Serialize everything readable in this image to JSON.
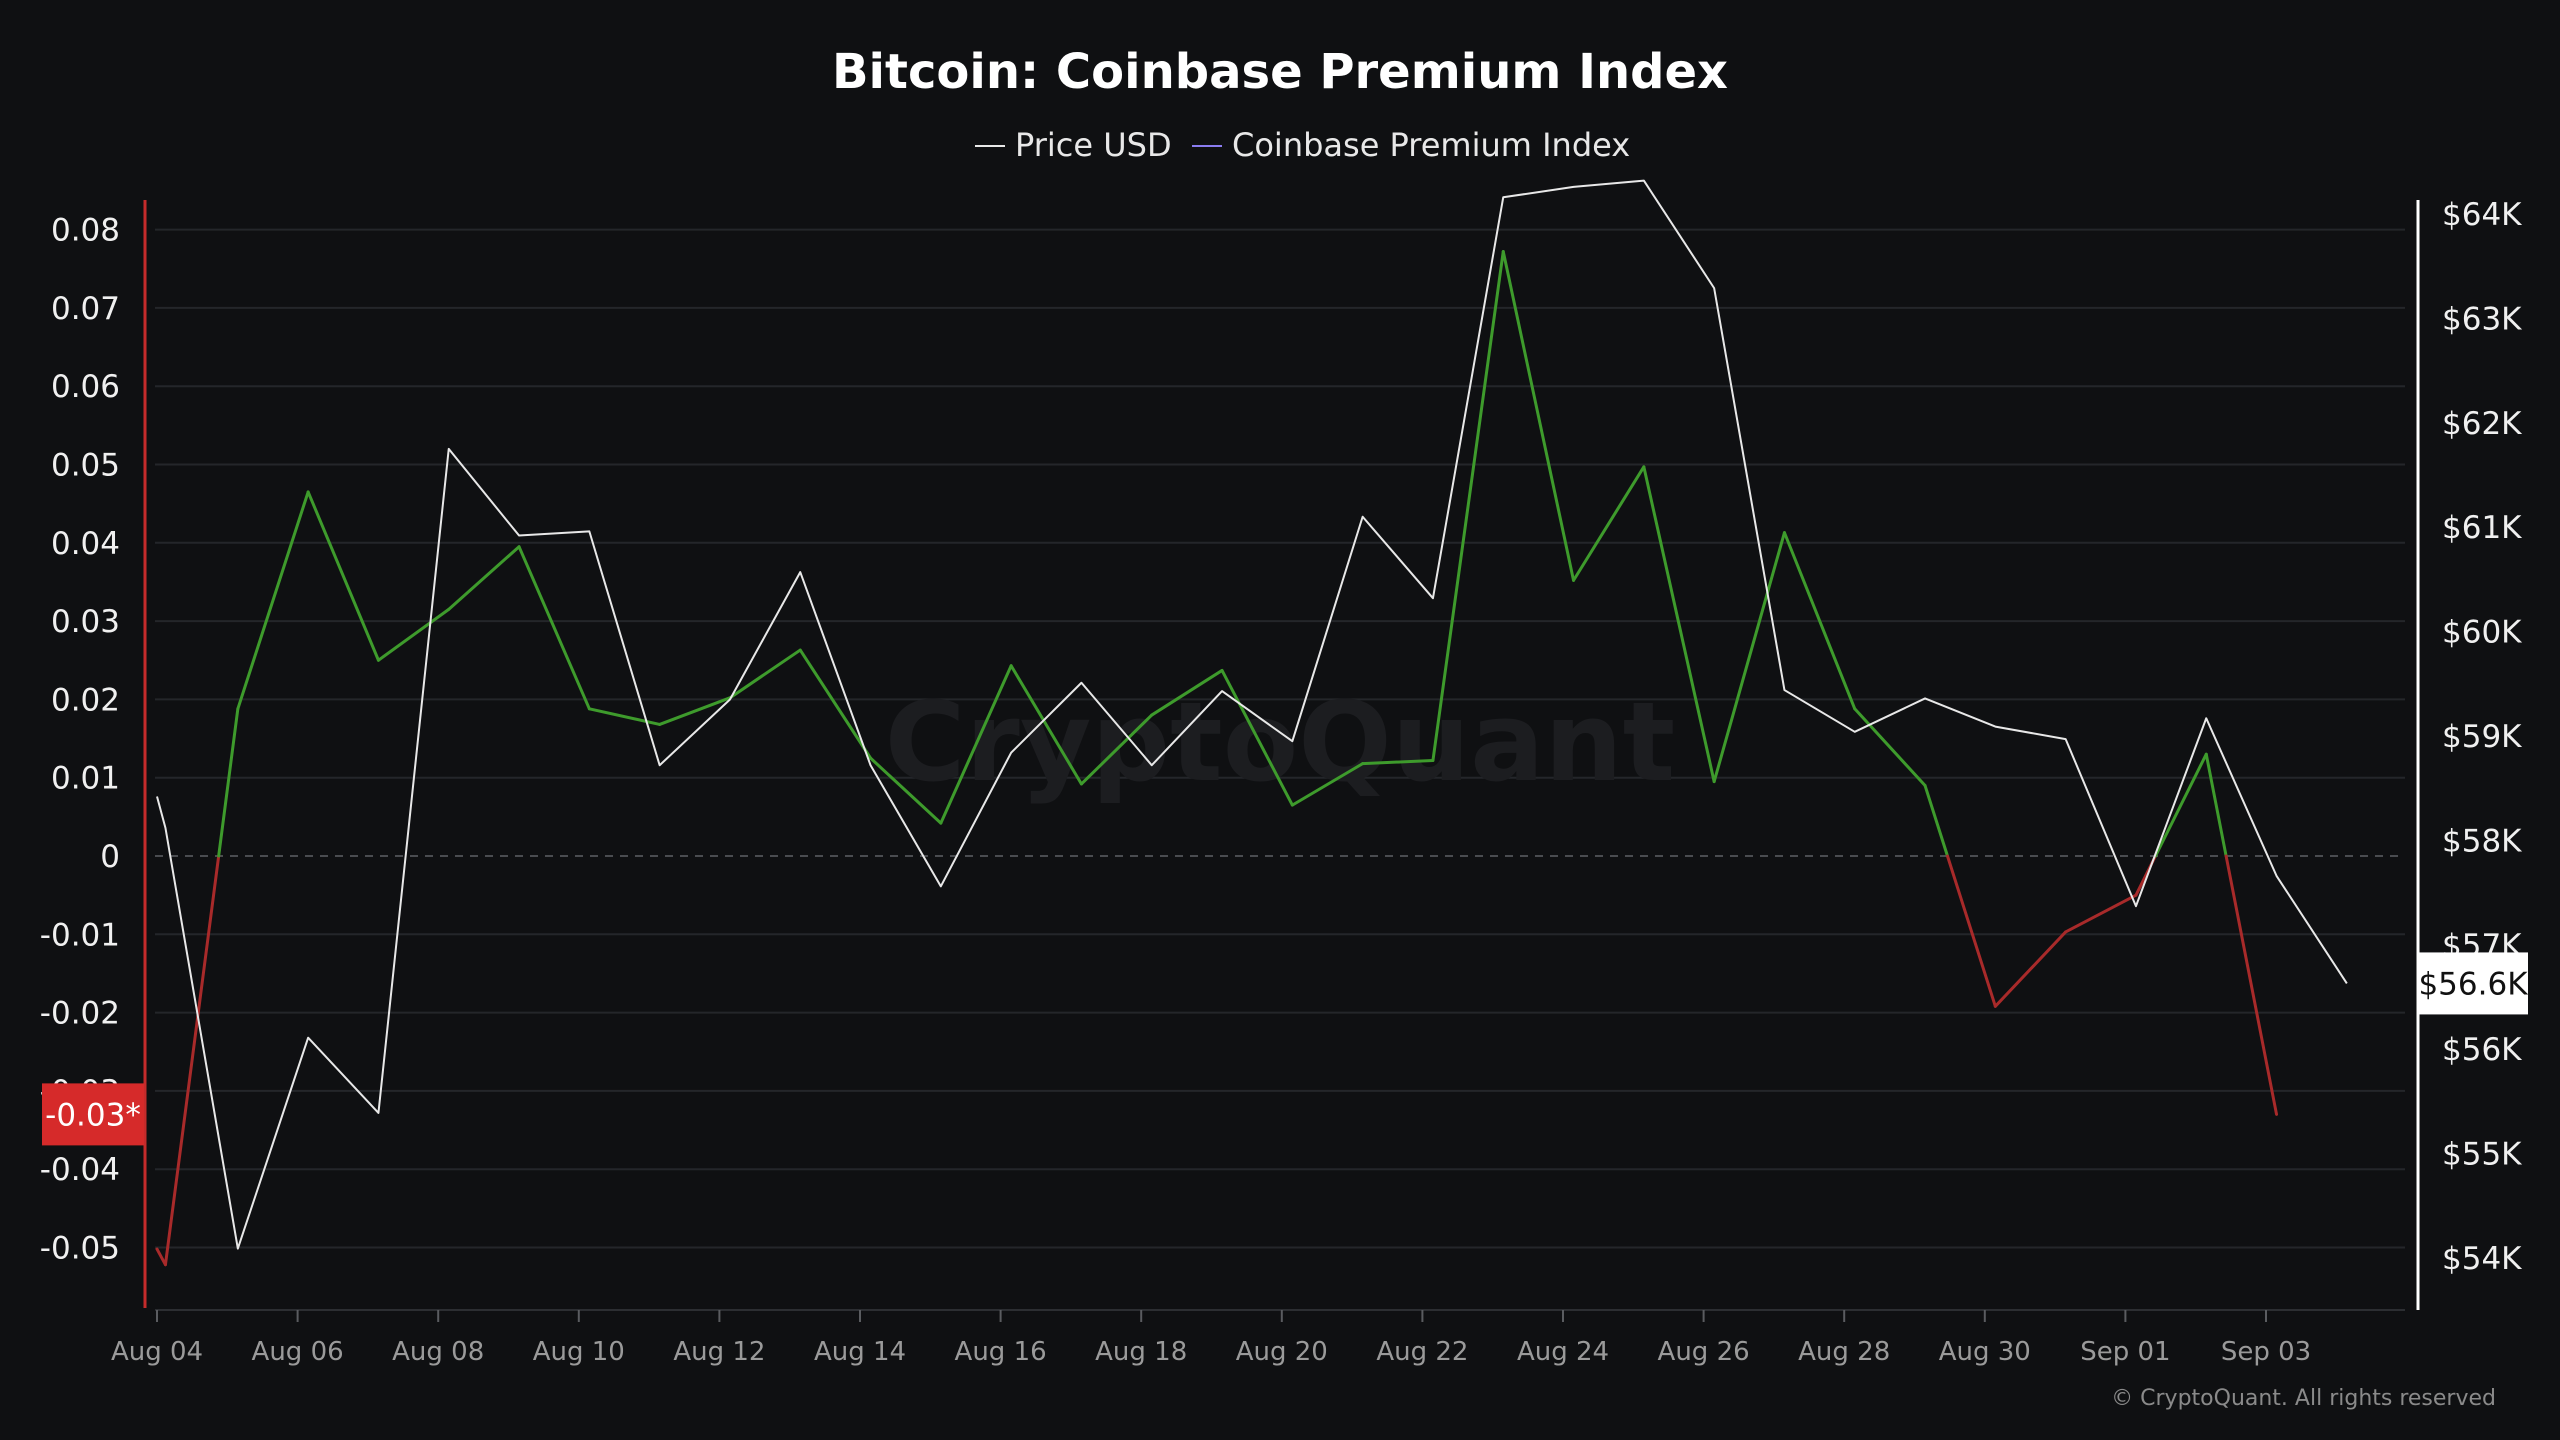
{
  "chart_data": {
    "type": "line",
    "title": "Bitcoin: Coinbase Premium Index",
    "legend": [
      {
        "name": "Price USD",
        "color": "#e8e8e8"
      },
      {
        "name": "Coinbase Premium Index",
        "color": "#8a7cf0"
      }
    ],
    "legend_placement": "top-center",
    "grid": true,
    "x_start_date": "2024-08-04",
    "x_ticks": [
      "Aug 04",
      "Aug 06",
      "Aug 08",
      "Aug 10",
      "Aug 12",
      "Aug 14",
      "Aug 16",
      "Aug 18",
      "Aug 20",
      "Aug 22",
      "Aug 24",
      "Aug 26",
      "Aug 28",
      "Aug 30",
      "Sep 01",
      "Sep 03"
    ],
    "x_tick_days": [
      0,
      2,
      4,
      6,
      8,
      10,
      12,
      14,
      16,
      18,
      20,
      22,
      24,
      26,
      28,
      30
    ],
    "x_range_days": [
      0,
      32.5
    ],
    "left_axis": {
      "ylim": [
        -0.058,
        0.085
      ],
      "ticks": [
        "0.08",
        "0.07",
        "0.06",
        "0.05",
        "0.04",
        "0.03",
        "0.02",
        "0.01",
        "0",
        "-0.01",
        "-0.02",
        "-0.03",
        "-0.04",
        "-0.05"
      ],
      "tick_values": [
        0.08,
        0.07,
        0.06,
        0.05,
        0.04,
        0.03,
        0.02,
        0.01,
        0,
        -0.01,
        -0.02,
        -0.03,
        -0.04,
        -0.05
      ]
    },
    "right_axis": {
      "ylim": [
        53380,
        64990
      ],
      "ticks": [
        "$64K",
        "$63K",
        "$62K",
        "$61K",
        "$60K",
        "$59K",
        "$58K",
        "$57K",
        "$56K",
        "$55K",
        "$54K"
      ],
      "tick_values": [
        64000,
        63000,
        62000,
        61000,
        60000,
        59000,
        58000,
        57000,
        56000,
        55000,
        54000
      ]
    },
    "series": [
      {
        "name": "Price USD",
        "axis": "right",
        "color": "#e8e8e8",
        "x": [
          0,
          0.12,
          1.15,
          2.15,
          3.15,
          4.15,
          5.15,
          6.15,
          7.15,
          8.15,
          9.15,
          10.15,
          11.15,
          12.15,
          13.15,
          14.15,
          15.15,
          16.15,
          17.15,
          18.15,
          19.15,
          20.15,
          21.15,
          22.15,
          23.15,
          24.15,
          25.15,
          26.15,
          27.15,
          28.15,
          29.15,
          30.15,
          31.15
        ],
        "y": [
          58420,
          58120,
          54090,
          56110,
          55390,
          61750,
          60920,
          60960,
          58720,
          59350,
          60570,
          58720,
          57560,
          58840,
          59510,
          58720,
          59430,
          58950,
          61100,
          60320,
          64160,
          64260,
          64320,
          63290,
          59440,
          59040,
          59360,
          59090,
          58970,
          57370,
          59170,
          57660,
          56630
        ]
      },
      {
        "name": "Coinbase Premium Index",
        "axis": "left",
        "x": [
          0,
          0.12,
          1.15,
          2.15,
          3.15,
          4.15,
          5.15,
          6.15,
          7.15,
          8.15,
          9.15,
          10.15,
          11.15,
          12.15,
          13.15,
          14.15,
          15.15,
          16.15,
          17.15,
          18.15,
          19.15,
          20.15,
          21.15,
          22.15,
          23.15,
          24.15,
          25.15,
          26.15,
          27.15,
          28.15,
          29.15,
          30.15
        ],
        "y": [
          -0.0502,
          -0.0522,
          0.0188,
          0.0465,
          0.025,
          0.0315,
          0.0395,
          0.0188,
          0.0168,
          0.0202,
          0.0263,
          0.0125,
          0.0042,
          0.0243,
          0.0092,
          0.018,
          0.0237,
          0.0065,
          0.0118,
          0.0122,
          0.0772,
          0.0352,
          0.0497,
          0.0095,
          0.0413,
          0.0188,
          0.009,
          -0.0192,
          -0.0097,
          -0.005,
          0.013,
          -0.033
        ],
        "positive_color": "#3e9b2c",
        "negative_color": "#a82a2a"
      }
    ],
    "markers": {
      "left_current_label": "-0.03*",
      "left_current_value": -0.033,
      "left_current_color": "#d62a2a",
      "right_current_label": "$56.6K",
      "right_current_value": 56630
    },
    "watermark": "CryptoQuant",
    "copyright": "© CryptoQuant. All rights reserved"
  },
  "colors": {
    "background": "#0f1012",
    "grid": "#24262a",
    "zero_line": "#4a4c50",
    "left_axis_line": "#c52b2b",
    "right_axis_line": "#ffffff"
  }
}
